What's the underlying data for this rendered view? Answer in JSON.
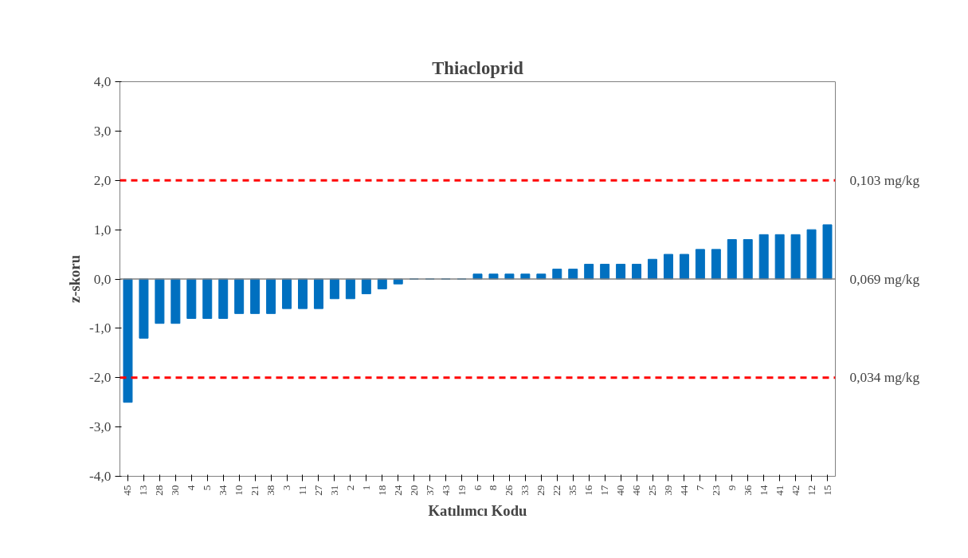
{
  "chart_data": {
    "type": "bar",
    "title": "Thiacloprid",
    "xlabel": "Katılımcı Kodu",
    "ylabel": "z-skoru",
    "categories": [
      "45",
      "13",
      "28",
      "30",
      "4",
      "5",
      "34",
      "10",
      "21",
      "38",
      "3",
      "11",
      "27",
      "31",
      "2",
      "1",
      "18",
      "24",
      "20",
      "37",
      "43",
      "19",
      "6",
      "8",
      "26",
      "33",
      "29",
      "22",
      "35",
      "16",
      "17",
      "40",
      "46",
      "25",
      "39",
      "44",
      "7",
      "23",
      "9",
      "36",
      "14",
      "41",
      "42",
      "12",
      "15"
    ],
    "values": [
      -2.5,
      -1.2,
      -0.9,
      -0.9,
      -0.8,
      -0.8,
      -0.8,
      -0.7,
      -0.7,
      -0.7,
      -0.6,
      -0.6,
      -0.6,
      -0.4,
      -0.4,
      -0.3,
      -0.2,
      -0.1,
      0,
      0,
      0,
      0,
      0.1,
      0.1,
      0.1,
      0.1,
      0.1,
      0.2,
      0.2,
      0.3,
      0.3,
      0.3,
      0.3,
      0.4,
      0.5,
      0.5,
      0.6,
      0.6,
      0.8,
      0.8,
      0.9,
      0.9,
      0.9,
      1.0,
      1.1
    ],
    "color": "#0070c0",
    "ylim": [
      -4,
      4
    ],
    "yticks": [
      {
        "value": -4,
        "label": "-4,0"
      },
      {
        "value": -3,
        "label": "-3,0"
      },
      {
        "value": -2,
        "label": "-2,0"
      },
      {
        "value": -1,
        "label": "-1,0"
      },
      {
        "value": 0,
        "label": "0,0"
      },
      {
        "value": 1,
        "label": "1,0"
      },
      {
        "value": 2,
        "label": "2,0"
      },
      {
        "value": 3,
        "label": "3,0"
      },
      {
        "value": 4,
        "label": "4,0"
      }
    ],
    "ref_lines": [
      {
        "axis": "y",
        "value": 2,
        "label": "0,103 mg/kg",
        "color": "#ff0000",
        "line_style": "dashed"
      },
      {
        "axis": "y",
        "value": 0,
        "label": "0,069 mg/kg",
        "color": "#808080",
        "line_style": "solid"
      },
      {
        "axis": "y",
        "value": -2,
        "label": "0,034 mg/kg",
        "color": "#ff0000",
        "line_style": "dashed"
      }
    ],
    "grid": false
  }
}
